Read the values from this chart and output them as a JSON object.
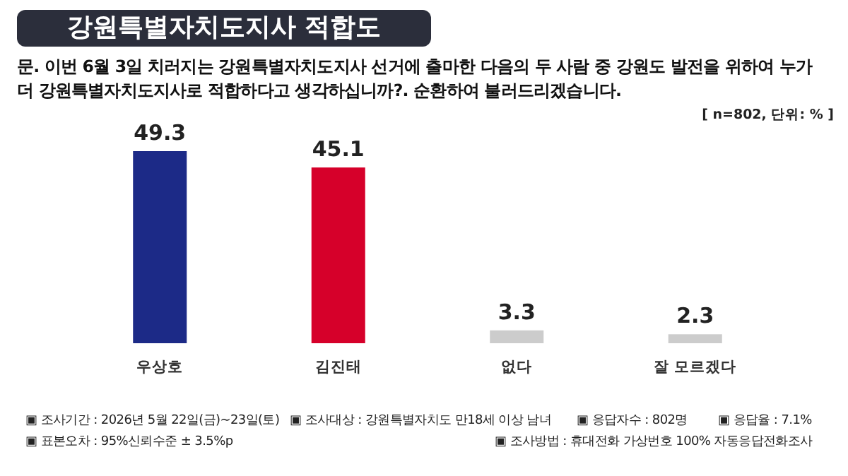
{
  "chart_data": {
    "type": "bar",
    "title": "강원특별자치도지사 적합도",
    "subtitle": "문. 이번 6월 3일 치러지는 강원특별자치도지사 선거에 출마한 다음의 두 사람 중 강원도 발전을 위하여 누가 더 강원특별자치도지사로 적합하다고 생각하십니까?. 순환하여 불러드리겠습니다.",
    "categories": [
      "우상호",
      "김진태",
      "없다",
      "잘 모르겠다"
    ],
    "values": [
      49.3,
      45.1,
      3.3,
      2.3
    ],
    "colors": [
      "#1c2a87",
      "#d6002a",
      "#cccccc",
      "#cccccc"
    ],
    "data_labels": true,
    "annotations": [
      "[ n=802, 단위: % ]",
      "▣ 조사기간 : 2026년 5월 22일(금)~23일(토)",
      "▣ 조사대상 : 강원특별자치도 만18세 이상 남녀",
      "▣ 응답자수 : 802명",
      "▣ 응답율 : 7.1%",
      "▣ 표본오차 : 95%신뢰수준 ± 3.5%p",
      "▣ 조사방법 : 휴대전화 가상번호 100% 자동응답전화조사"
    ]
  }
}
